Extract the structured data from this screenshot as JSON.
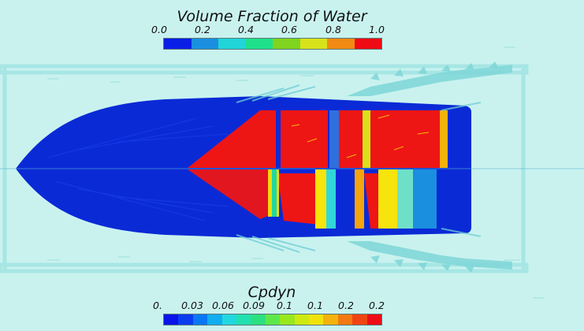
{
  "top_legend": {
    "title": "Volume Fraction of Water",
    "tick_labels": [
      "0.0",
      "0.2",
      "0.4",
      "0.6",
      "0.8",
      "1.0"
    ],
    "colors": [
      "#0a1fe6",
      "#1a8fe0",
      "#20d4d8",
      "#1fe08a",
      "#7ed41e",
      "#d8e21a",
      "#f08a12",
      "#f00a14"
    ]
  },
  "bottom_legend": {
    "title": "Cpdyn",
    "tick_labels": [
      "0.",
      "0.03",
      "0.06",
      "0.09",
      "0.1",
      "0.1",
      "0.2",
      "0.2"
    ],
    "colors": [
      "#0a14e8",
      "#0a3cf0",
      "#0a78f4",
      "#12aef0",
      "#22d8e0",
      "#22e0b0",
      "#2be080",
      "#5de84a",
      "#98e81e",
      "#cdea10",
      "#f2e20c",
      "#f4b20c",
      "#f27a10",
      "#f04412",
      "#ee0c16"
    ]
  },
  "scene": {
    "background_color": "#c9f2ef",
    "hull_color": "#0a2ad6",
    "wet_color": "#ee1515"
  }
}
